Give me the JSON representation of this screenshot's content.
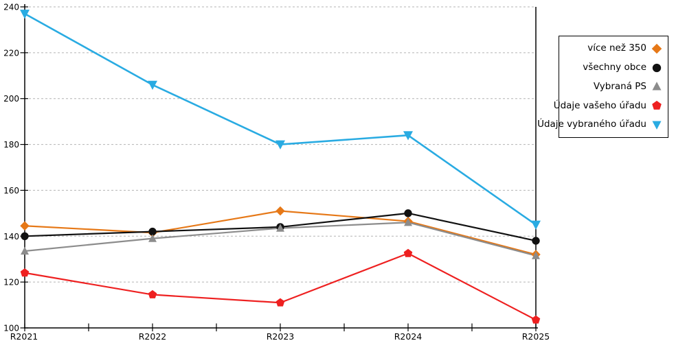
{
  "chart_data": {
    "type": "line",
    "title": "",
    "xlabel": "",
    "ylabel": "",
    "categories": [
      "R2021",
      "R2022",
      "R2023",
      "R2024",
      "R2025"
    ],
    "series": [
      {
        "name": "více než 350",
        "color": "#E67817",
        "marker": "diamond",
        "values": [
          144.5,
          141.5,
          151,
          146.5,
          132
        ]
      },
      {
        "name": "všechny obce",
        "color": "#111111",
        "marker": "circle",
        "values": [
          140,
          142,
          144,
          150,
          138
        ]
      },
      {
        "name": "Vybraná PS",
        "color": "#8C8C8C",
        "marker": "triangle-up",
        "values": [
          133.5,
          139,
          143.5,
          146,
          131.5
        ]
      },
      {
        "name": "Údaje vašeho úřadu",
        "color": "#EE2020",
        "marker": "pentagon",
        "values": [
          124,
          114.5,
          111,
          132.5,
          103.5
        ]
      },
      {
        "name": "Údaje vybraného úřadu",
        "color": "#29ABE2",
        "marker": "triangle-down",
        "values": [
          237,
          206,
          180,
          184,
          145
        ]
      }
    ],
    "ylim": [
      100,
      240
    ],
    "yticks": [
      100,
      120,
      140,
      160,
      180,
      200,
      220,
      240
    ],
    "grid": "horizontal-dashed",
    "grid_color": "#B3B3B3",
    "axis_color": "#000000",
    "legend_position": "top-right-outside"
  }
}
